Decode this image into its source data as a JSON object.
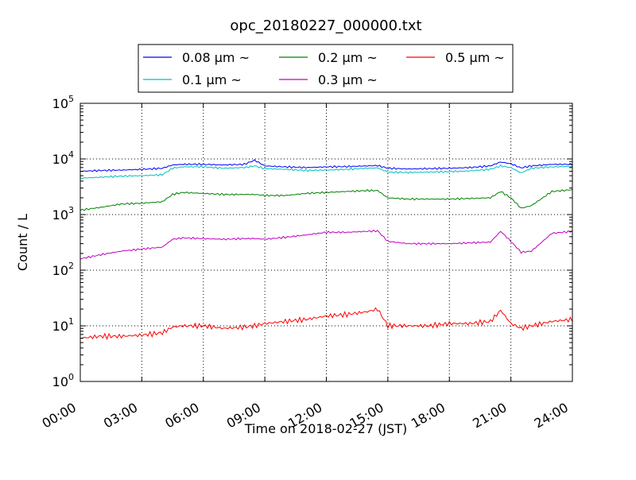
{
  "chart_data": {
    "type": "line",
    "title": "opc_20180227_000000.txt",
    "xlabel": "Time on 2018-02-27 (JST)",
    "ylabel": "Count / L",
    "y_scale": "log",
    "grid": true,
    "legend_placement": "above plot, centered, 3 columns",
    "xlim": [
      "00:00",
      "24:00"
    ],
    "ylim": [
      1,
      100000
    ],
    "x_ticks": [
      "00:00",
      "03:00",
      "06:00",
      "09:00",
      "12:00",
      "15:00",
      "18:00",
      "21:00",
      "24:00"
    ],
    "y_ticks": [
      {
        "base": "10",
        "exp": "0"
      },
      {
        "base": "10",
        "exp": "1"
      },
      {
        "base": "10",
        "exp": "2"
      },
      {
        "base": "10",
        "exp": "3"
      },
      {
        "base": "10",
        "exp": "4"
      },
      {
        "base": "10",
        "exp": "5"
      }
    ],
    "x": [
      "00:00",
      "01:00",
      "02:00",
      "03:00",
      "04:00",
      "04:30",
      "05:00",
      "06:00",
      "07:00",
      "08:00",
      "08:30",
      "09:00",
      "10:00",
      "11:00",
      "12:00",
      "13:00",
      "14:00",
      "14:30",
      "15:00",
      "16:00",
      "17:00",
      "18:00",
      "19:00",
      "20:00",
      "20:30",
      "21:00",
      "21:30",
      "22:00",
      "23:00",
      "24:00"
    ],
    "series": [
      {
        "name": "0.08 μm ~",
        "color": "#0000ff",
        "values": [
          6000,
          6200,
          6300,
          6500,
          6800,
          7800,
          8000,
          8000,
          7800,
          8000,
          9500,
          7500,
          7200,
          7000,
          7200,
          7300,
          7500,
          7600,
          6800,
          6600,
          6700,
          6800,
          7000,
          7500,
          8800,
          8200,
          6900,
          7500,
          8000,
          8000
        ]
      },
      {
        "name": "0.1 μm ~",
        "color": "#00bfbf",
        "values": [
          4500,
          4700,
          4900,
          5000,
          5200,
          6800,
          7200,
          7200,
          6800,
          7000,
          7500,
          6700,
          6500,
          6200,
          6300,
          6500,
          6800,
          6900,
          5800,
          5700,
          5800,
          5900,
          6100,
          6500,
          7500,
          7000,
          5600,
          6800,
          7200,
          7300
        ]
      },
      {
        "name": "0.2 μm ~",
        "color": "#008000",
        "values": [
          1200,
          1350,
          1550,
          1600,
          1700,
          2300,
          2500,
          2400,
          2300,
          2300,
          2300,
          2200,
          2200,
          2400,
          2500,
          2600,
          2700,
          2700,
          2000,
          1900,
          1900,
          1900,
          1950,
          2000,
          2600,
          2000,
          1300,
          1450,
          2600,
          2800
        ]
      },
      {
        "name": "0.3 μm ~",
        "color": "#bf00bf",
        "values": [
          160,
          190,
          220,
          240,
          260,
          360,
          380,
          370,
          360,
          370,
          370,
          360,
          390,
          430,
          480,
          480,
          500,
          510,
          330,
          300,
          300,
          300,
          310,
          320,
          500,
          330,
          210,
          220,
          460,
          500
        ]
      },
      {
        "name": "0.5 μm ~",
        "color": "#ff0000",
        "values": [
          6,
          6.5,
          6.5,
          6.8,
          7.5,
          9.5,
          10,
          10,
          9,
          9.5,
          10,
          11,
          12,
          13,
          15,
          16,
          18,
          20,
          10,
          10,
          10,
          11,
          11,
          12,
          19,
          11,
          9,
          10,
          12,
          13
        ]
      }
    ]
  }
}
